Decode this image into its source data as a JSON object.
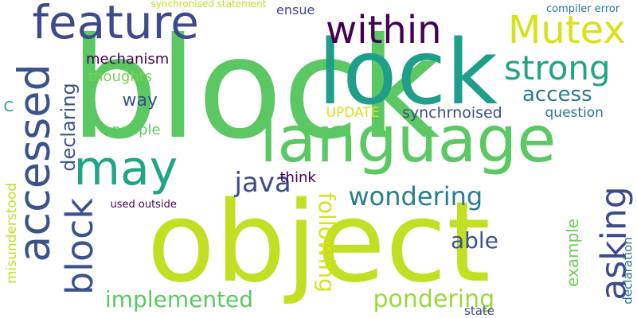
{
  "words": [
    {
      "text": "object",
      "color": "#c2df23"
    },
    {
      "text": "block",
      "color": "#5cc863"
    },
    {
      "text": "lock",
      "color": "#1f9e89"
    },
    {
      "text": "language",
      "color": "#5cc863"
    },
    {
      "text": "feature",
      "color": "#3e4a89"
    },
    {
      "text": "within",
      "color": "#440154"
    },
    {
      "text": "Mutex",
      "color": "#d8e219"
    },
    {
      "text": "accessed",
      "color": "#3b528b"
    },
    {
      "text": "may",
      "color": "#21a585"
    },
    {
      "text": "block",
      "color": "#3b528b"
    },
    {
      "text": "strong",
      "color": "#21a585"
    },
    {
      "text": "access",
      "color": "#2a788e"
    },
    {
      "text": "asking",
      "color": "#3e4a89"
    },
    {
      "text": "wondering",
      "color": "#287d8e"
    },
    {
      "text": "java",
      "color": "#3e4a89"
    },
    {
      "text": "following",
      "color": "#d8e219"
    },
    {
      "text": "pondering",
      "color": "#9bd93c"
    },
    {
      "text": "implemented",
      "color": "#5cc863"
    },
    {
      "text": "able",
      "color": "#3b528b"
    },
    {
      "text": "example",
      "color": "#6ccd5a"
    },
    {
      "text": "declaring",
      "color": "#3b528b"
    },
    {
      "text": "mechanism",
      "color": "#440154"
    },
    {
      "text": "thoughts",
      "color": "#7ad151"
    },
    {
      "text": "way",
      "color": "#3b528b"
    },
    {
      "text": "people",
      "color": "#5cc863"
    },
    {
      "text": "think",
      "color": "#440154"
    },
    {
      "text": "UPDATE",
      "color": "#d8e219"
    },
    {
      "text": "synchrnoised",
      "color": "#3e4a89"
    },
    {
      "text": "question",
      "color": "#2a788e"
    },
    {
      "text": "ensue",
      "color": "#3e4a89"
    },
    {
      "text": "compiler error",
      "color": "#2a788e"
    },
    {
      "text": "synchronised statement",
      "color": "#c2df23"
    },
    {
      "text": "misunderstood",
      "color": "#c2df23"
    },
    {
      "text": "used outside",
      "color": "#440154"
    },
    {
      "text": "C",
      "color": "#21a585"
    },
    {
      "text": "state",
      "color": "#3e4a89"
    },
    {
      "text": "declaration",
      "color": "#2a788e"
    }
  ]
}
